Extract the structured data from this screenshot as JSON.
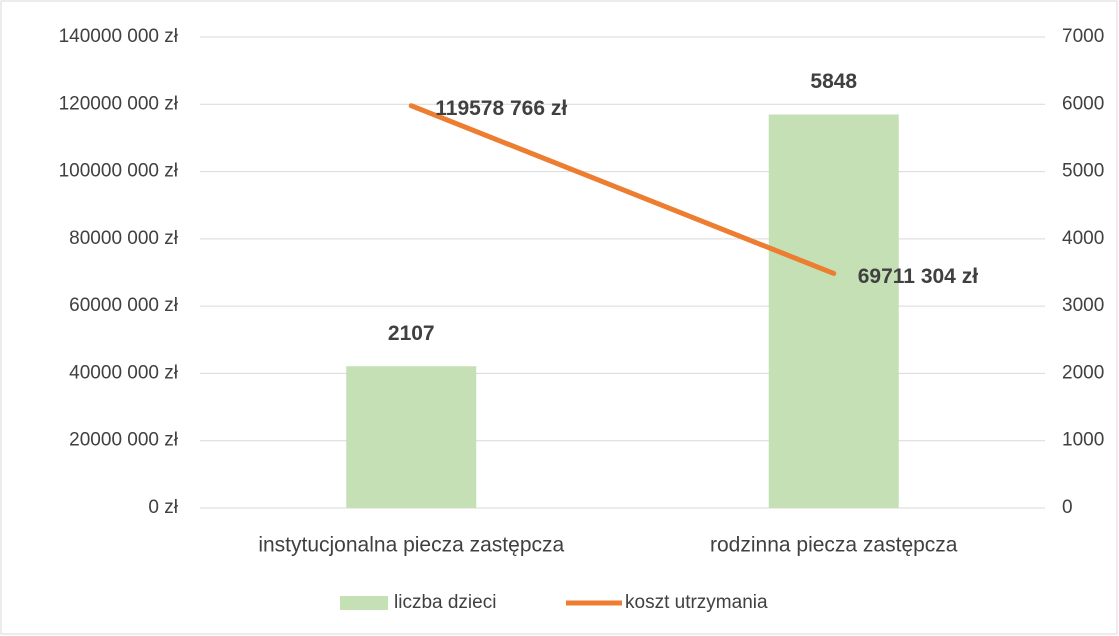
{
  "chart_data": {
    "type": "combo",
    "categories": [
      "instytucjonalna piecza zastępcza",
      "rodzinna piecza zastępcza"
    ],
    "series": [
      {
        "name": "liczba dzieci",
        "type": "bar",
        "axis": "y2",
        "color": "#c5e0b4",
        "values": [
          2107,
          5848
        ]
      },
      {
        "name": "koszt utrzymania",
        "type": "line",
        "axis": "y",
        "color": "#ed7d31",
        "values": [
          119578766,
          69711304
        ],
        "value_labels": [
          "119578 766 zł",
          "69711 304 zł"
        ]
      }
    ],
    "ylim": [
      0,
      140000000
    ],
    "yticks": [
      {
        "value": 0,
        "label": "0 zł"
      },
      {
        "value": 20000000,
        "label": "20000 000 zł"
      },
      {
        "value": 40000000,
        "label": "40000 000 zł"
      },
      {
        "value": 60000000,
        "label": "60000 000 zł"
      },
      {
        "value": 80000000,
        "label": "80000 000 zł"
      },
      {
        "value": 100000000,
        "label": "100000 000 zł"
      },
      {
        "value": 120000000,
        "label": "120000 000 zł"
      },
      {
        "value": 140000000,
        "label": "140000 000 zł"
      }
    ],
    "y2lim": [
      0,
      7000
    ],
    "y2ticks": [
      0,
      1000,
      2000,
      3000,
      4000,
      5000,
      6000,
      7000
    ],
    "grid": true,
    "legend": "bottom"
  }
}
